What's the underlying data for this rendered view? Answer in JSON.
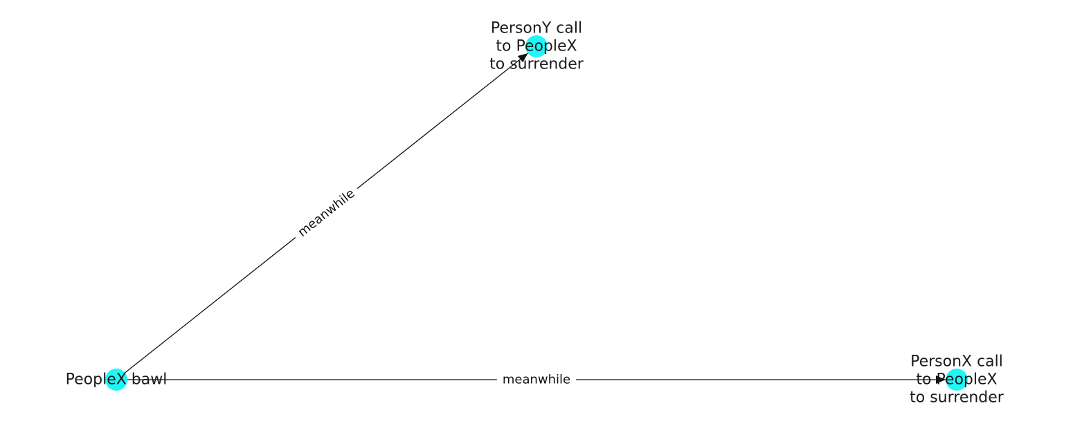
{
  "graph": {
    "node_color": "#1ff7f7",
    "edge_color": "#111111",
    "nodes": [
      {
        "id": "n0",
        "name": "node-peoplex-bawl",
        "lines": [
          "PeopleX bawl"
        ]
      },
      {
        "id": "n1",
        "name": "node-persony-call",
        "lines": [
          "PersonY call",
          "to PeopleX",
          "to surrender"
        ]
      },
      {
        "id": "n2",
        "name": "node-personx-call",
        "lines": [
          "PersonX call",
          "to PeopleX",
          "to surrender"
        ]
      }
    ],
    "edges": [
      {
        "name": "edge-bawl-to-persony",
        "source": "n0",
        "target": "n1",
        "label": "meanwhile"
      },
      {
        "name": "edge-bawl-to-personx",
        "source": "n0",
        "target": "n2",
        "label": "meanwhile"
      }
    ]
  }
}
